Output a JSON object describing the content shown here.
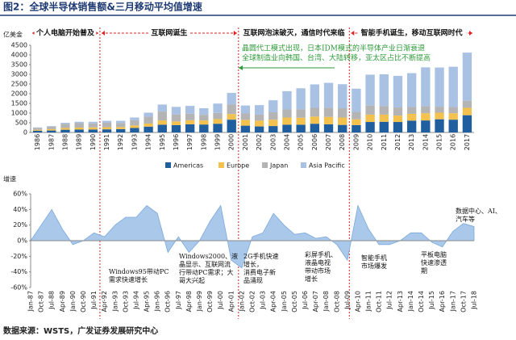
{
  "chart_data": [
    {
      "type": "bar",
      "stacked": true,
      "title": "图2：全球半导体销售额&三月移动平均值增速",
      "y_label": "亿美金",
      "categories": [
        "1986",
        "1987",
        "1988",
        "1989",
        "1990",
        "1991",
        "1992",
        "1993",
        "1994",
        "1995",
        "1996",
        "1997",
        "1998",
        "1999",
        "2000",
        "2001",
        "2002",
        "2003",
        "2004",
        "2005",
        "2006",
        "2007",
        "2008",
        "2009",
        "2010",
        "2011",
        "2012",
        "2013",
        "2014",
        "2015",
        "2016",
        "2017"
      ],
      "series": [
        {
          "name": "Americas",
          "color": "#1f5f9f",
          "values": [
            90,
            100,
            140,
            150,
            150,
            160,
            170,
            230,
            300,
            400,
            380,
            420,
            410,
            450,
            660,
            350,
            310,
            330,
            400,
            400,
            450,
            420,
            390,
            380,
            540,
            550,
            540,
            610,
            620,
            680,
            660,
            890
          ]
        },
        {
          "name": "Europe",
          "color": "#f2c14e",
          "values": [
            50,
            70,
            90,
            100,
            110,
            110,
            110,
            130,
            160,
            220,
            190,
            210,
            210,
            240,
            290,
            300,
            300,
            330,
            370,
            360,
            370,
            380,
            380,
            300,
            380,
            370,
            330,
            350,
            370,
            340,
            330,
            380
          ]
        },
        {
          "name": "Japan",
          "color": "#b4b4b4",
          "values": [
            100,
            130,
            210,
            230,
            210,
            230,
            210,
            270,
            350,
            460,
            360,
            340,
            290,
            320,
            490,
            330,
            310,
            380,
            420,
            440,
            450,
            480,
            480,
            380,
            470,
            440,
            420,
            350,
            360,
            310,
            320,
            370
          ]
        },
        {
          "name": "Asia Pacific",
          "color": "#a9c1e3",
          "values": [
            20,
            30,
            60,
            70,
            80,
            100,
            110,
            140,
            210,
            360,
            390,
            400,
            340,
            480,
            600,
            410,
            490,
            620,
            940,
            1080,
            1210,
            1280,
            1240,
            1200,
            1590,
            1640,
            1630,
            1750,
            2010,
            2020,
            2080,
            2480
          ]
        }
      ],
      "ylim": [
        0,
        4500
      ],
      "yticks": [
        0,
        500,
        1000,
        1500,
        2000,
        2500,
        3000,
        3500,
        4000,
        4500
      ],
      "legend": "bottom",
      "eras": [
        "个人电脑开始普及",
        "互联网诞生",
        "互联网泡沫破灭，通信时代来临",
        "智能手机诞生，移动互联网时代"
      ],
      "annotation_lines": [
        "晶圆代工模式出现，日本IDM模式的半导体产业日渐衰退",
        "全球制造业向韩国、台湾、大陆转移，亚太区占比不断提高"
      ]
    },
    {
      "type": "area",
      "y_label": "增速",
      "categories": [
        "Jan-87",
        "Oct-87",
        "Jul-88",
        "Apr-89",
        "Jan-90",
        "Oct-90",
        "Jul-91",
        "Apr-92",
        "Jan-93",
        "Oct-93",
        "Jul-94",
        "Apr-95",
        "Jan-96",
        "Oct-96",
        "Jul-97",
        "Apr-98",
        "Jan-99",
        "Oct-99",
        "Jul-00",
        "Apr-01",
        "Jan-02",
        "Oct-02",
        "Jul-03",
        "Apr-04",
        "Jan-05",
        "Oct-05",
        "Jul-06",
        "Apr-07",
        "Jan-08",
        "Oct-08",
        "Jul-09",
        "Apr-10",
        "Jan-11",
        "Oct-11",
        "Jul-12",
        "Apr-13",
        "Jan-14",
        "Oct-14",
        "Jul-15",
        "Apr-16",
        "Jan-17",
        "Oct-17",
        "Jul-18"
      ],
      "values": [
        0,
        20,
        40,
        15,
        -5,
        0,
        10,
        5,
        20,
        30,
        30,
        45,
        35,
        -15,
        5,
        -15,
        0,
        25,
        45,
        -25,
        -35,
        5,
        10,
        35,
        20,
        8,
        10,
        3,
        5,
        -5,
        -25,
        45,
        15,
        -5,
        -5,
        0,
        10,
        10,
        -2,
        -8,
        12,
        22,
        18
      ],
      "color": "#a9c8ea",
      "ylim": [
        -60,
        60
      ],
      "yticks": [
        {
          "value": -60,
          "label": "-60%"
        },
        {
          "value": -40,
          "label": "-40%"
        },
        {
          "value": -20,
          "label": "-20%"
        },
        {
          "value": 0,
          "label": "0%"
        },
        {
          "value": 20,
          "label": "20%"
        },
        {
          "value": 40,
          "label": "40%"
        },
        {
          "value": 60,
          "label": "60%"
        }
      ],
      "annotations": [
        {
          "lines": [
            "Windows95带动PC",
            "需求快速增长"
          ]
        },
        {
          "lines": [
            "Windows2000、液",
            "晶显示、互联网流",
            "行带动PC需求；大",
            "哥大兴起"
          ]
        },
        {
          "lines": [
            "2G手机快速",
            "增长，",
            "消费电子新",
            "品涌现"
          ]
        },
        {
          "lines": [
            "彩屏手机、",
            "液晶电视",
            "带动市场",
            "增长"
          ]
        },
        {
          "lines": [
            "智能手机",
            "市场爆发"
          ]
        },
        {
          "lines": [
            "平板电脑",
            "快速渗透",
            "期"
          ]
        },
        {
          "lines": [
            "数据中心、AI、",
            "汽车等"
          ]
        }
      ]
    }
  ],
  "footer": "数据来源：WSTS，广发证券发展研究中心"
}
